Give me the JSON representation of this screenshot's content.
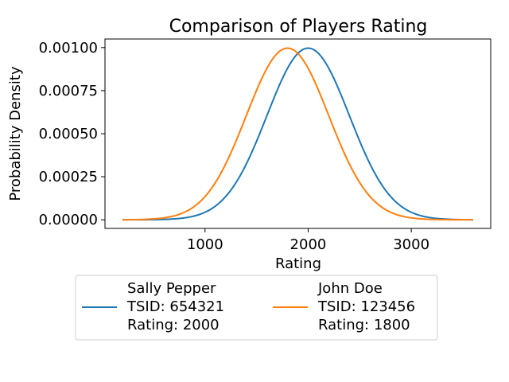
{
  "chart_data": {
    "type": "line",
    "title": "Comparison of Players Rating",
    "xlabel": "Rating",
    "ylabel": "Probability Density",
    "xlim": [
      30,
      3770
    ],
    "ylim": [
      -5e-05,
      0.00105
    ],
    "xticks": [
      1000,
      2000,
      3000
    ],
    "yticks": [
      0.0,
      0.00025,
      0.0005,
      0.00075,
      0.001
    ],
    "xtick_labels": [
      "1000",
      "2000",
      "3000"
    ],
    "ytick_labels": [
      "0.00000",
      "0.00025",
      "0.00050",
      "0.00075",
      "0.00100"
    ],
    "grid": false,
    "legend_placement": "below",
    "series": [
      {
        "name": "Sally Pepper",
        "legend_lines": [
          "Sally Pepper",
          "TSID: 654321",
          "Rating: 2000"
        ],
        "color": "#1f77b4",
        "distribution": "normal",
        "mean": 2000,
        "sd": 400,
        "x_range": [
          200,
          3600
        ],
        "peak": 0.000997
      },
      {
        "name": "John Doe",
        "legend_lines": [
          "John Doe",
          "TSID: 123456",
          "Rating: 1800"
        ],
        "color": "#ff7f0e",
        "distribution": "normal",
        "mean": 1800,
        "sd": 400,
        "x_range": [
          200,
          3600
        ],
        "peak": 0.000997
      }
    ]
  }
}
